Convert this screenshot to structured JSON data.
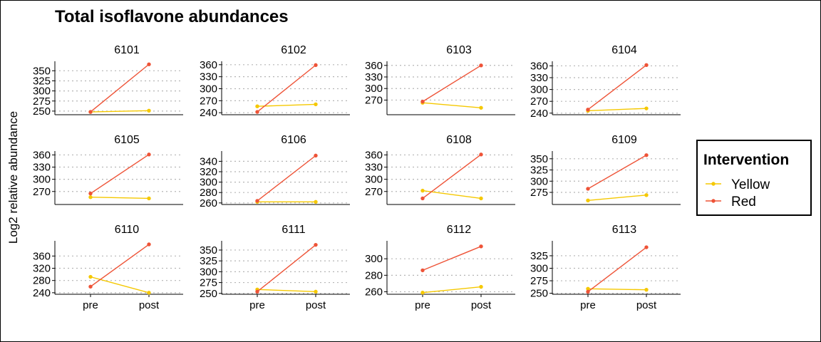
{
  "chart_data": {
    "type": "line",
    "title": "Total isoflavone abundances",
    "ylabel": "Log2 relative abundance",
    "xlabel": "",
    "x": [
      "pre",
      "post"
    ],
    "legend": {
      "title": "Intervention",
      "placement": "right",
      "entries": [
        {
          "name": "Yellow",
          "color": "#F5C800"
        },
        {
          "name": "Red",
          "color": "#EE5337"
        }
      ]
    },
    "grid": "horizontal-dotted",
    "panels": [
      {
        "id": "6101",
        "yticks": [
          250,
          275,
          300,
          325,
          350
        ],
        "ylim": [
          241,
          370
        ],
        "series": [
          {
            "name": "Yellow",
            "values": [
              248,
              251
            ]
          },
          {
            "name": "Red",
            "values": [
              248,
              366
            ]
          }
        ]
      },
      {
        "id": "6102",
        "yticks": [
          240,
          270,
          300,
          330,
          360
        ],
        "ylim": [
          235,
          365
        ],
        "series": [
          {
            "name": "Yellow",
            "values": [
              256,
              261
            ]
          },
          {
            "name": "Red",
            "values": [
              242,
              359
            ]
          }
        ]
      },
      {
        "id": "6103",
        "yticks": [
          270,
          300,
          330,
          360
        ],
        "ylim": [
          232,
          367
        ],
        "series": [
          {
            "name": "Yellow",
            "values": [
              263,
              250
            ]
          },
          {
            "name": "Red",
            "values": [
              266,
              360
            ]
          }
        ]
      },
      {
        "id": "6104",
        "yticks": [
          240,
          270,
          300,
          330,
          360
        ],
        "ylim": [
          236,
          368
        ],
        "series": [
          {
            "name": "Yellow",
            "values": [
              246,
              252
            ]
          },
          {
            "name": "Red",
            "values": [
              249,
              362
            ]
          }
        ]
      },
      {
        "id": "6105",
        "yticks": [
          270,
          300,
          330,
          360
        ],
        "ylim": [
          238,
          366
        ],
        "series": [
          {
            "name": "Yellow",
            "values": [
              256,
              253
            ]
          },
          {
            "name": "Red",
            "values": [
              265,
              361
            ]
          }
        ]
      },
      {
        "id": "6106",
        "yticks": [
          260,
          280,
          300,
          320,
          340
        ],
        "ylim": [
          257,
          357
        ],
        "series": [
          {
            "name": "Yellow",
            "values": [
              262,
              262
            ]
          },
          {
            "name": "Red",
            "values": [
              264,
              351
            ]
          }
        ]
      },
      {
        "id": "6108",
        "yticks": [
          270,
          300,
          330,
          360
        ],
        "ylim": [
          238,
          366
        ],
        "series": [
          {
            "name": "Yellow",
            "values": [
              272,
              253
            ]
          },
          {
            "name": "Red",
            "values": [
              253,
              361
            ]
          }
        ]
      },
      {
        "id": "6109",
        "yticks": [
          275,
          300,
          325,
          350
        ],
        "ylim": [
          248,
          364
        ],
        "series": [
          {
            "name": "Yellow",
            "values": [
              257,
              269
            ]
          },
          {
            "name": "Red",
            "values": [
              283,
              358
            ]
          }
        ]
      },
      {
        "id": "6110",
        "yticks": [
          240,
          280,
          320,
          360
        ],
        "ylim": [
          235,
          405
        ],
        "series": [
          {
            "name": "Yellow",
            "values": [
              292,
              240
            ]
          },
          {
            "name": "Red",
            "values": [
              260,
              398
            ]
          }
        ]
      },
      {
        "id": "6111",
        "yticks": [
          250,
          275,
          300,
          325,
          350
        ],
        "ylim": [
          248,
          368
        ],
        "series": [
          {
            "name": "Yellow",
            "values": [
              259,
              254
            ]
          },
          {
            "name": "Red",
            "values": [
              254,
              362
            ]
          }
        ]
      },
      {
        "id": "6112",
        "yticks": [
          260,
          280,
          300
        ],
        "ylim": [
          257,
          320
        ],
        "series": [
          {
            "name": "Yellow",
            "values": [
              259,
              266
            ]
          },
          {
            "name": "Red",
            "values": [
              286,
              315
            ]
          }
        ]
      },
      {
        "id": "6113",
        "yticks": [
          250,
          275,
          300,
          325
        ],
        "ylim": [
          248,
          352
        ],
        "series": [
          {
            "name": "Yellow",
            "values": [
              259,
              257
            ]
          },
          {
            "name": "Red",
            "values": [
              253,
              342
            ]
          }
        ]
      }
    ]
  }
}
